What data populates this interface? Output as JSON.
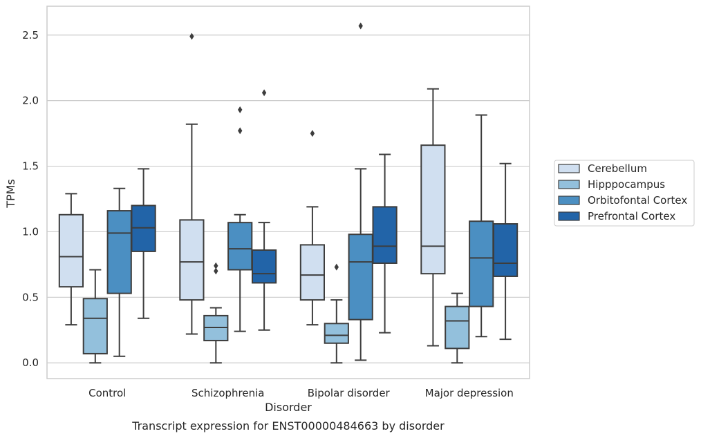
{
  "chart_data": {
    "type": "box",
    "title": "",
    "caption": "Transcript expression for ENST00000484663 by disorder",
    "xlabel": "Disorder",
    "ylabel": "TPMs",
    "ylim": [
      -0.12,
      2.72
    ],
    "yticks": [
      "0.0",
      "0.5",
      "1.0",
      "1.5",
      "2.0",
      "2.5"
    ],
    "grid": "horizontal",
    "legend_position": "right",
    "categories": [
      "Control",
      "Schizophrenia",
      "Bipolar disorder",
      "Major depression"
    ],
    "series": [
      {
        "name": "Cerebellum",
        "color": "#d0dff0",
        "boxes": [
          {
            "whislo": 0.29,
            "q1": 0.58,
            "med": 0.81,
            "q3": 1.13,
            "whishi": 1.29,
            "fliers": []
          },
          {
            "whislo": 0.22,
            "q1": 0.48,
            "med": 0.77,
            "q3": 1.09,
            "whishi": 1.82,
            "fliers": [
              2.49
            ]
          },
          {
            "whislo": 0.29,
            "q1": 0.48,
            "med": 0.67,
            "q3": 0.9,
            "whishi": 1.19,
            "fliers": [
              1.75
            ]
          },
          {
            "whislo": 0.13,
            "q1": 0.68,
            "med": 0.89,
            "q3": 1.66,
            "whishi": 2.09,
            "fliers": []
          }
        ]
      },
      {
        "name": "Hipppocampus",
        "color": "#93c0dc",
        "boxes": [
          {
            "whislo": 0.0,
            "q1": 0.07,
            "med": 0.34,
            "q3": 0.49,
            "whishi": 0.71,
            "fliers": []
          },
          {
            "whislo": 0.0,
            "q1": 0.17,
            "med": 0.27,
            "q3": 0.36,
            "whishi": 0.42,
            "fliers": [
              0.7,
              0.74
            ]
          },
          {
            "whislo": 0.0,
            "q1": 0.15,
            "med": 0.21,
            "q3": 0.3,
            "whishi": 0.48,
            "fliers": [
              0.73
            ]
          },
          {
            "whislo": 0.0,
            "q1": 0.11,
            "med": 0.32,
            "q3": 0.43,
            "whishi": 0.53,
            "fliers": []
          }
        ]
      },
      {
        "name": "Orbitofontal Cortex",
        "color": "#4b8fc2",
        "boxes": [
          {
            "whislo": 0.05,
            "q1": 0.53,
            "med": 0.99,
            "q3": 1.16,
            "whishi": 1.33,
            "fliers": []
          },
          {
            "whislo": 0.24,
            "q1": 0.71,
            "med": 0.87,
            "q3": 1.07,
            "whishi": 1.13,
            "fliers": [
              1.77,
              1.93
            ]
          },
          {
            "whislo": 0.02,
            "q1": 0.33,
            "med": 0.77,
            "q3": 0.98,
            "whishi": 1.48,
            "fliers": [
              2.57
            ]
          },
          {
            "whislo": 0.2,
            "q1": 0.43,
            "med": 0.8,
            "q3": 1.08,
            "whishi": 1.89,
            "fliers": []
          }
        ]
      },
      {
        "name": "Prefrontal Cortex",
        "color": "#2264a8",
        "boxes": [
          {
            "whislo": 0.34,
            "q1": 0.85,
            "med": 1.03,
            "q3": 1.2,
            "whishi": 1.48,
            "fliers": []
          },
          {
            "whislo": 0.25,
            "q1": 0.61,
            "med": 0.68,
            "q3": 0.86,
            "whishi": 1.07,
            "fliers": [
              2.06
            ]
          },
          {
            "whislo": 0.23,
            "q1": 0.76,
            "med": 0.89,
            "q3": 1.19,
            "whishi": 1.59,
            "fliers": []
          },
          {
            "whislo": 0.18,
            "q1": 0.66,
            "med": 0.76,
            "q3": 1.06,
            "whishi": 1.52,
            "fliers": []
          }
        ]
      }
    ]
  }
}
